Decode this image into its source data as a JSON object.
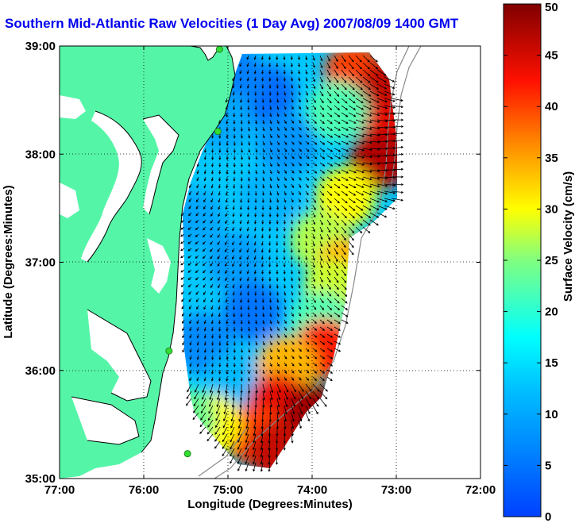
{
  "chart_data": {
    "type": "heatmap",
    "title": "Southern Mid-Atlantic Raw Velocities (1 Day Avg) 2007/08/09 1400 GMT",
    "xlabel": "Longitude (Degrees:Minutes)",
    "ylabel": "Latitude (Degrees:Minutes)",
    "xlim": [
      -77,
      -72
    ],
    "ylim": [
      35,
      39
    ],
    "x_ticks": [
      {
        "value": -77,
        "label": "77:00"
      },
      {
        "value": -76,
        "label": "76:00"
      },
      {
        "value": -75,
        "label": "75:00"
      },
      {
        "value": -74,
        "label": "74:00"
      },
      {
        "value": -73,
        "label": "73:00"
      },
      {
        "value": -72,
        "label": "72:00"
      }
    ],
    "y_ticks": [
      {
        "value": 35,
        "label": "35:00"
      },
      {
        "value": 36,
        "label": "36:00"
      },
      {
        "value": 37,
        "label": "37:00"
      },
      {
        "value": 38,
        "label": "38:00"
      },
      {
        "value": 39,
        "label": "39:00"
      }
    ],
    "grid": true,
    "colorbar": {
      "label": "Surface Velocity (cm/s)",
      "min": 0,
      "max": 50,
      "ticks": [
        0,
        5,
        10,
        15,
        20,
        25,
        30,
        35,
        40,
        45,
        50
      ],
      "colormap": "jet"
    },
    "land_color": "#55f5a8",
    "water_color": "#ffffff",
    "station_color": "#33dd33",
    "coastline_color": "#000000",
    "isobath_color": "#888888",
    "arrow_color": "#000000",
    "stations": [
      {
        "lon": -75.1,
        "lat": 38.97
      },
      {
        "lon": -75.12,
        "lat": 38.21
      },
      {
        "lon": -75.7,
        "lat": 36.18
      },
      {
        "lon": -75.48,
        "lat": 35.23
      }
    ],
    "speed_field": [
      {
        "lon": -74.55,
        "lat": 38.55,
        "speed": 4
      },
      {
        "lon": -74.9,
        "lat": 38.7,
        "speed": 6
      },
      {
        "lon": -74.3,
        "lat": 38.1,
        "speed": 8
      },
      {
        "lon": -75.05,
        "lat": 38.3,
        "speed": 10
      },
      {
        "lon": -74.5,
        "lat": 37.6,
        "speed": 11
      },
      {
        "lon": -75.4,
        "lat": 37.4,
        "speed": 10
      },
      {
        "lon": -74.9,
        "lat": 37.0,
        "speed": 9
      },
      {
        "lon": -74.7,
        "lat": 36.55,
        "speed": 5
      },
      {
        "lon": -75.3,
        "lat": 36.25,
        "speed": 7
      },
      {
        "lon": -74.9,
        "lat": 35.9,
        "speed": 12
      },
      {
        "lon": -73.5,
        "lat": 38.75,
        "speed": 40
      },
      {
        "lon": -73.1,
        "lat": 38.6,
        "speed": 46
      },
      {
        "lon": -73.05,
        "lat": 38.2,
        "speed": 44
      },
      {
        "lon": -73.2,
        "lat": 37.95,
        "speed": 47
      },
      {
        "lon": -73.7,
        "lat": 38.4,
        "speed": 22
      },
      {
        "lon": -73.6,
        "lat": 37.6,
        "speed": 30
      },
      {
        "lon": -73.9,
        "lat": 37.2,
        "speed": 27
      },
      {
        "lon": -73.6,
        "lat": 36.95,
        "speed": 34
      },
      {
        "lon": -73.75,
        "lat": 36.75,
        "speed": 28
      },
      {
        "lon": -73.9,
        "lat": 36.45,
        "speed": 22
      },
      {
        "lon": -73.85,
        "lat": 36.2,
        "speed": 42
      },
      {
        "lon": -74.3,
        "lat": 36.05,
        "speed": 34
      },
      {
        "lon": -74.4,
        "lat": 35.7,
        "speed": 44
      },
      {
        "lon": -74.0,
        "lat": 35.6,
        "speed": 48
      },
      {
        "lon": -74.7,
        "lat": 35.4,
        "speed": 40
      },
      {
        "lon": -75.2,
        "lat": 35.5,
        "speed": 30
      },
      {
        "lon": -74.4,
        "lat": 35.25,
        "speed": 46
      },
      {
        "lon": -75.5,
        "lat": 35.55,
        "speed": 24
      }
    ],
    "flow_direction_note": ""
  }
}
